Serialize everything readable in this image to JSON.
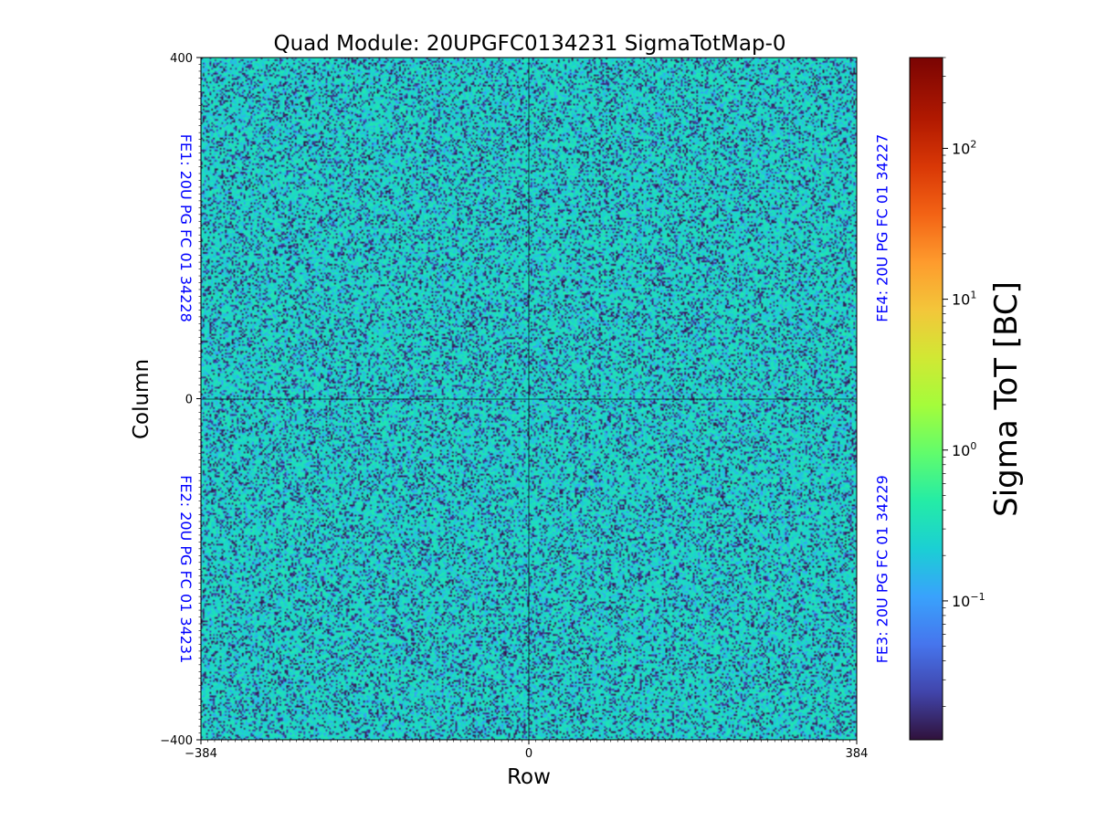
{
  "chart_data": {
    "type": "heatmap",
    "title": "Quad Module: 20UPGFC0134231 SigmaTotMap-0",
    "xlabel": "Row",
    "ylabel": "Column",
    "xlim": [
      -384,
      384
    ],
    "ylim": [
      -400,
      400
    ],
    "x_ticks": [
      {
        "value": -384,
        "label": "−384"
      },
      {
        "value": 0,
        "label": "0"
      },
      {
        "value": 384,
        "label": "384"
      }
    ],
    "y_ticks": [
      {
        "value": 400,
        "label": "400"
      },
      {
        "value": 0,
        "label": "0"
      },
      {
        "value": -400,
        "label": "−400"
      }
    ],
    "divider_lines": {
      "x": 0,
      "y": 0
    },
    "front_end_labels": [
      {
        "id": "FE1",
        "text": "FE1: 20U PG FC 01 34228",
        "side": "left",
        "quadrant": "top"
      },
      {
        "id": "FE2",
        "text": "FE2: 20U PG FC 01 34231",
        "side": "left",
        "quadrant": "bottom"
      },
      {
        "id": "FE3",
        "text": "FE3: 20U PG FC 01 34229",
        "side": "right",
        "quadrant": "bottom"
      },
      {
        "id": "FE4",
        "text": "FE4: 20U PG FC 01 34227",
        "side": "right",
        "quadrant": "top"
      }
    ],
    "colorbar": {
      "label": "Sigma ToT [BC]",
      "scale": "log",
      "range": [
        0.012,
        400
      ],
      "colormap": "turbo",
      "ticks": [
        {
          "value": 0.1,
          "base": "10",
          "exp": "−1"
        },
        {
          "value": 1,
          "base": "10",
          "exp": "0"
        },
        {
          "value": 10,
          "base": "10",
          "exp": "1"
        },
        {
          "value": 100,
          "base": "10",
          "exp": "2"
        }
      ]
    },
    "data_summary": {
      "typical_value": 0.3,
      "distribution": "noisy; mostly cyan-teal (~0.2-0.6 BC) with scattered dark-blue low values"
    },
    "label_color": "#0000ff",
    "grid": false
  }
}
